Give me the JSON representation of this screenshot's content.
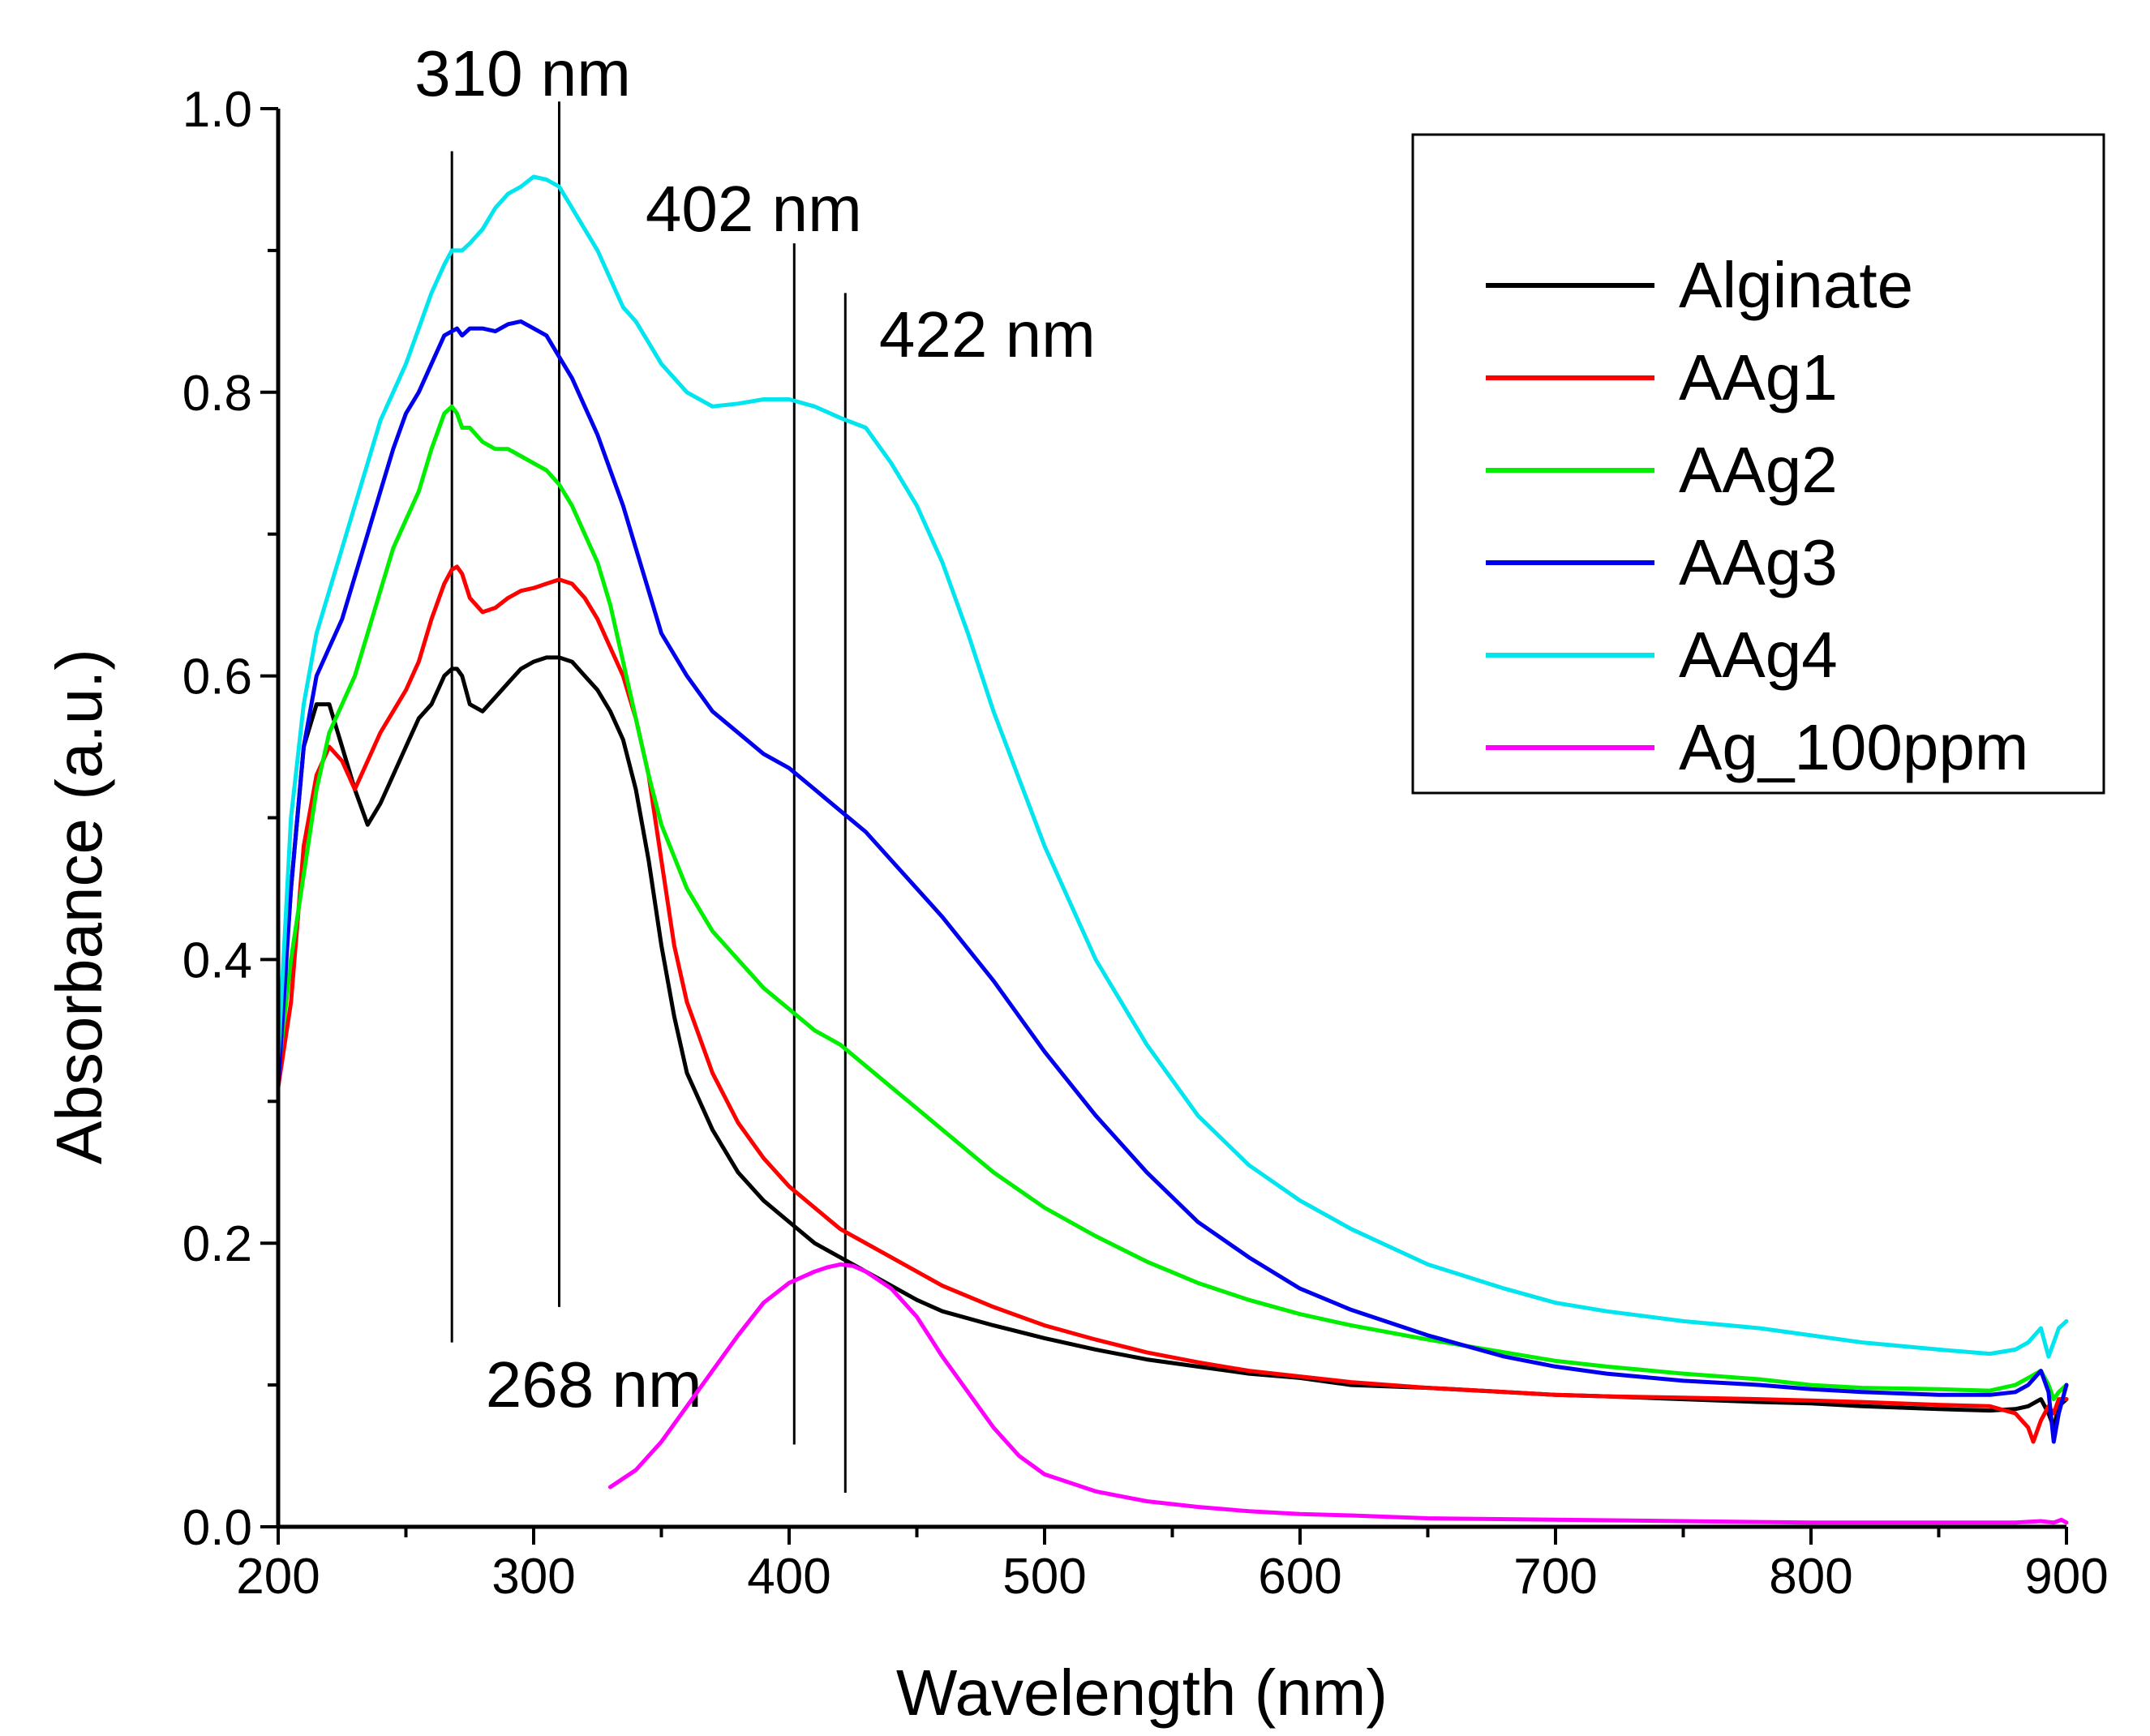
{
  "chart_data": {
    "type": "line",
    "xlabel": "Wavelength (nm)",
    "ylabel": "Absorbance (a.u.)",
    "xlim": [
      200,
      900
    ],
    "ylim": [
      0,
      1.0
    ],
    "x_ticks": [
      200,
      300,
      400,
      500,
      600,
      700,
      800,
      900
    ],
    "y_ticks": [
      "0.0",
      "0.2",
      "0.4",
      "0.6",
      "0.8",
      "1.0"
    ],
    "legend_position": "top-right",
    "annotations": [
      {
        "label": "268 nm",
        "x": 268,
        "y_from": 0.13,
        "y_to": 0.97
      },
      {
        "label": "310 nm",
        "x": 310,
        "y_from": 0.155,
        "y_to": 1.005
      },
      {
        "label": "402 nm",
        "x": 402,
        "y_from": 0.058,
        "y_to": 0.905
      },
      {
        "label": "422 nm",
        "x": 422,
        "y_from": 0.024,
        "y_to": 0.87
      }
    ],
    "series": [
      {
        "name": "Alginate",
        "color": "#000000",
        "x": [
          200,
          205,
          210,
          215,
          220,
          225,
          230,
          235,
          240,
          245,
          250,
          255,
          260,
          265,
          268,
          270,
          272,
          275,
          280,
          285,
          290,
          295,
          300,
          305,
          310,
          315,
          320,
          325,
          330,
          335,
          340,
          345,
          350,
          355,
          360,
          370,
          380,
          390,
          400,
          410,
          420,
          430,
          440,
          450,
          460,
          480,
          500,
          520,
          540,
          560,
          580,
          600,
          620,
          650,
          680,
          700,
          720,
          750,
          780,
          800,
          820,
          850,
          870,
          880,
          885,
          890,
          893,
          895,
          897,
          900
        ],
        "values": [
          0.32,
          0.45,
          0.55,
          0.58,
          0.58,
          0.55,
          0.52,
          0.495,
          0.51,
          0.53,
          0.55,
          0.57,
          0.58,
          0.6,
          0.605,
          0.605,
          0.6,
          0.58,
          0.575,
          0.585,
          0.595,
          0.605,
          0.61,
          0.613,
          0.613,
          0.61,
          0.6,
          0.59,
          0.575,
          0.555,
          0.52,
          0.47,
          0.41,
          0.36,
          0.32,
          0.28,
          0.25,
          0.23,
          0.215,
          0.2,
          0.19,
          0.18,
          0.17,
          0.16,
          0.152,
          0.142,
          0.133,
          0.125,
          0.118,
          0.113,
          0.108,
          0.105,
          0.1,
          0.098,
          0.095,
          0.093,
          0.092,
          0.09,
          0.088,
          0.087,
          0.085,
          0.083,
          0.082,
          0.083,
          0.085,
          0.09,
          0.08,
          0.07,
          0.085,
          0.09
        ]
      },
      {
        "name": "AAg1",
        "color": "#ff0000",
        "x": [
          200,
          205,
          210,
          215,
          220,
          225,
          230,
          235,
          240,
          245,
          250,
          255,
          260,
          265,
          268,
          270,
          272,
          275,
          280,
          285,
          290,
          295,
          300,
          305,
          310,
          315,
          320,
          325,
          330,
          335,
          340,
          345,
          350,
          355,
          360,
          370,
          380,
          390,
          400,
          410,
          420,
          430,
          440,
          450,
          460,
          480,
          500,
          520,
          540,
          560,
          580,
          600,
          620,
          650,
          680,
          700,
          720,
          750,
          780,
          800,
          820,
          850,
          870,
          880,
          885,
          887,
          890,
          893,
          895,
          897,
          900
        ],
        "values": [
          0.31,
          0.37,
          0.48,
          0.53,
          0.55,
          0.54,
          0.52,
          0.54,
          0.56,
          0.575,
          0.59,
          0.61,
          0.64,
          0.665,
          0.675,
          0.677,
          0.672,
          0.655,
          0.645,
          0.648,
          0.655,
          0.66,
          0.662,
          0.665,
          0.668,
          0.665,
          0.655,
          0.64,
          0.62,
          0.6,
          0.57,
          0.53,
          0.47,
          0.41,
          0.37,
          0.32,
          0.285,
          0.26,
          0.24,
          0.225,
          0.21,
          0.2,
          0.19,
          0.18,
          0.17,
          0.155,
          0.142,
          0.132,
          0.123,
          0.116,
          0.11,
          0.106,
          0.102,
          0.098,
          0.095,
          0.093,
          0.092,
          0.091,
          0.09,
          0.089,
          0.088,
          0.086,
          0.085,
          0.08,
          0.07,
          0.06,
          0.075,
          0.085,
          0.08,
          0.09,
          0.09
        ]
      },
      {
        "name": "AAg2",
        "color": "#00ee00",
        "x": [
          200,
          205,
          210,
          215,
          220,
          225,
          230,
          235,
          240,
          245,
          250,
          255,
          260,
          265,
          268,
          270,
          272,
          275,
          280,
          285,
          290,
          295,
          300,
          305,
          310,
          315,
          320,
          325,
          330,
          335,
          340,
          345,
          350,
          360,
          370,
          380,
          390,
          400,
          410,
          420,
          430,
          440,
          450,
          460,
          480,
          500,
          520,
          540,
          560,
          580,
          600,
          620,
          650,
          680,
          700,
          720,
          750,
          780,
          800,
          820,
          850,
          870,
          880,
          885,
          890,
          893,
          895,
          897,
          900
        ],
        "values": [
          0.32,
          0.4,
          0.46,
          0.52,
          0.56,
          0.58,
          0.6,
          0.63,
          0.66,
          0.69,
          0.71,
          0.73,
          0.76,
          0.785,
          0.79,
          0.785,
          0.775,
          0.775,
          0.765,
          0.76,
          0.76,
          0.755,
          0.75,
          0.745,
          0.735,
          0.72,
          0.7,
          0.68,
          0.65,
          0.61,
          0.57,
          0.53,
          0.495,
          0.45,
          0.42,
          0.4,
          0.38,
          0.365,
          0.35,
          0.34,
          0.325,
          0.31,
          0.295,
          0.28,
          0.25,
          0.225,
          0.205,
          0.187,
          0.172,
          0.16,
          0.15,
          0.142,
          0.132,
          0.123,
          0.117,
          0.113,
          0.108,
          0.104,
          0.1,
          0.098,
          0.097,
          0.096,
          0.1,
          0.105,
          0.11,
          0.1,
          0.09,
          0.095,
          0.1
        ]
      },
      {
        "name": "AAg3",
        "color": "#0000ee",
        "x": [
          200,
          205,
          210,
          215,
          220,
          225,
          230,
          235,
          240,
          245,
          250,
          255,
          260,
          265,
          268,
          270,
          272,
          275,
          280,
          285,
          290,
          295,
          300,
          305,
          310,
          315,
          320,
          325,
          330,
          335,
          340,
          345,
          350,
          360,
          370,
          380,
          390,
          400,
          410,
          420,
          430,
          440,
          450,
          460,
          480,
          500,
          520,
          540,
          560,
          580,
          600,
          620,
          650,
          680,
          700,
          720,
          750,
          780,
          800,
          820,
          850,
          870,
          880,
          885,
          890,
          893,
          895,
          897,
          900
        ],
        "values": [
          0.31,
          0.45,
          0.55,
          0.6,
          0.62,
          0.64,
          0.67,
          0.7,
          0.73,
          0.76,
          0.785,
          0.8,
          0.82,
          0.84,
          0.843,
          0.845,
          0.84,
          0.845,
          0.845,
          0.843,
          0.848,
          0.85,
          0.845,
          0.84,
          0.825,
          0.81,
          0.79,
          0.77,
          0.745,
          0.72,
          0.69,
          0.66,
          0.63,
          0.6,
          0.575,
          0.56,
          0.545,
          0.535,
          0.52,
          0.505,
          0.49,
          0.47,
          0.45,
          0.43,
          0.385,
          0.335,
          0.29,
          0.25,
          0.215,
          0.19,
          0.168,
          0.153,
          0.135,
          0.12,
          0.113,
          0.108,
          0.103,
          0.1,
          0.097,
          0.095,
          0.093,
          0.093,
          0.095,
          0.1,
          0.11,
          0.095,
          0.06,
          0.08,
          0.1
        ]
      },
      {
        "name": "AAg4",
        "color": "#00e5ee",
        "x": [
          200,
          205,
          210,
          215,
          220,
          225,
          230,
          235,
          240,
          245,
          250,
          255,
          260,
          265,
          268,
          270,
          272,
          275,
          280,
          285,
          290,
          295,
          300,
          305,
          310,
          315,
          320,
          325,
          330,
          335,
          340,
          345,
          350,
          360,
          370,
          380,
          390,
          400,
          410,
          420,
          430,
          440,
          450,
          460,
          470,
          480,
          500,
          520,
          540,
          560,
          580,
          600,
          620,
          650,
          680,
          700,
          720,
          750,
          780,
          800,
          820,
          850,
          870,
          880,
          885,
          890,
          893,
          895,
          897,
          900
        ],
        "values": [
          0.33,
          0.5,
          0.58,
          0.63,
          0.66,
          0.69,
          0.72,
          0.75,
          0.78,
          0.8,
          0.82,
          0.845,
          0.87,
          0.89,
          0.9,
          0.9,
          0.9,
          0.905,
          0.915,
          0.93,
          0.94,
          0.945,
          0.952,
          0.95,
          0.945,
          0.93,
          0.915,
          0.9,
          0.88,
          0.86,
          0.85,
          0.835,
          0.82,
          0.8,
          0.79,
          0.792,
          0.795,
          0.795,
          0.79,
          0.782,
          0.775,
          0.75,
          0.72,
          0.68,
          0.63,
          0.575,
          0.48,
          0.4,
          0.34,
          0.29,
          0.255,
          0.23,
          0.21,
          0.185,
          0.168,
          0.158,
          0.152,
          0.145,
          0.14,
          0.135,
          0.13,
          0.125,
          0.122,
          0.125,
          0.13,
          0.14,
          0.12,
          0.13,
          0.14,
          0.145
        ]
      },
      {
        "name": "Ag_100ppm",
        "color": "#ff00ff",
        "x": [
          330,
          340,
          350,
          360,
          370,
          380,
          390,
          400,
          410,
          415,
          420,
          425,
          430,
          440,
          450,
          460,
          470,
          480,
          490,
          500,
          520,
          540,
          560,
          580,
          600,
          620,
          650,
          700,
          750,
          800,
          850,
          880,
          890,
          895,
          898,
          900
        ],
        "values": [
          0.028,
          0.04,
          0.06,
          0.085,
          0.11,
          0.135,
          0.158,
          0.172,
          0.18,
          0.183,
          0.185,
          0.184,
          0.18,
          0.168,
          0.148,
          0.12,
          0.095,
          0.07,
          0.05,
          0.037,
          0.025,
          0.018,
          0.014,
          0.011,
          0.009,
          0.008,
          0.006,
          0.005,
          0.004,
          0.003,
          0.003,
          0.003,
          0.004,
          0.003,
          0.005,
          0.003
        ]
      }
    ]
  }
}
